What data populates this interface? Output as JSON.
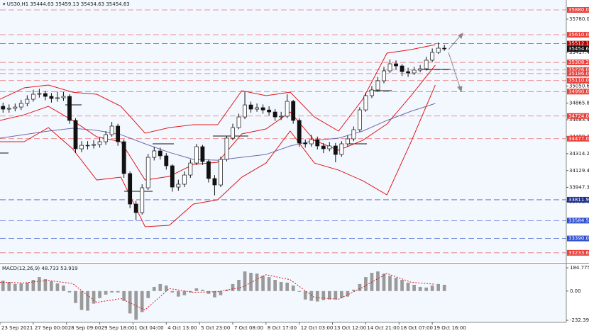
{
  "chart_data": {
    "type": "candlestick",
    "symbol": "US30,H1",
    "ohlc": [
      35444.63,
      35459.13,
      35434.63,
      35454.63
    ],
    "xlim": [
      0,
      562
    ],
    "ylim": [
      33132,
      35988
    ],
    "xticks": [
      {
        "value": 0,
        "label": "23 Sep 2021"
      },
      {
        "value": 33,
        "label": "27 Sep 00:00"
      },
      {
        "value": 66,
        "label": "28 Sep 09:00"
      },
      {
        "value": 99,
        "label": "29 Sep 18:00"
      },
      {
        "value": 132,
        "label": "1 Oct 04:00"
      },
      {
        "value": 165,
        "label": "4 Oct 13:00"
      },
      {
        "value": 198,
        "label": "5 Oct 23:00"
      },
      {
        "value": 231,
        "label": "7 Oct 08:00"
      },
      {
        "value": 264,
        "label": "8 Oct 17:00"
      },
      {
        "value": 297,
        "label": "12 Oct 03:00"
      },
      {
        "value": 330,
        "label": "13 Oct 12:00"
      },
      {
        "value": 363,
        "label": "14 Oct 21:00"
      },
      {
        "value": 396,
        "label": "18 Oct 07:00"
      },
      {
        "value": 429,
        "label": "19 Oct 16:00"
      }
    ],
    "yticks": [
      {
        "value": 35780,
        "label": "35780.00"
      },
      {
        "value": 35417.4,
        "label": "35417.40"
      },
      {
        "value": 35050.6,
        "label": "35050.60"
      },
      {
        "value": 34865.8,
        "label": "34865.80"
      },
      {
        "value": 34683.4,
        "label": "34683.40"
      },
      {
        "value": 34499.3,
        "label": "34499.30"
      },
      {
        "value": 34314.2,
        "label": "34314.20"
      },
      {
        "value": 34129.4,
        "label": "34129.40"
      },
      {
        "value": 33947.3,
        "label": "33947.30"
      },
      {
        "value": 33792.6,
        "label": "33792.60"
      }
    ],
    "x": [
      3,
      9,
      15,
      21,
      27,
      33,
      39,
      45,
      51,
      57,
      63,
      69,
      75,
      81,
      87,
      93,
      99,
      105,
      111,
      117,
      123,
      129,
      135,
      141,
      147,
      153,
      159,
      165,
      171,
      177,
      183,
      189,
      195,
      201,
      207,
      213,
      219,
      225,
      231,
      237,
      243,
      249,
      255,
      261,
      267,
      273,
      279,
      285,
      291,
      297,
      303,
      309,
      315,
      321,
      327,
      333,
      339,
      345,
      351,
      357,
      363,
      369,
      375,
      381,
      387,
      393,
      399,
      405,
      411,
      417,
      423,
      429,
      435,
      441
    ],
    "open": [
      34830,
      34799,
      34807,
      34822,
      34861,
      34907,
      34961,
      34969,
      34938,
      34915,
      34923,
      34938,
      34676,
      34367,
      34405,
      34405,
      34413,
      34444,
      34521,
      34614,
      34444,
      34097,
      33765,
      33672,
      33942,
      34274,
      34344,
      34290,
      34182,
      33950,
      33981,
      34081,
      34212,
      34390,
      34228,
      34043,
      33973,
      34251,
      34483,
      34598,
      34714,
      34845,
      34799,
      34815,
      34790,
      34768,
      34714,
      34722,
      34884,
      34676,
      34429,
      34421,
      34467,
      34398,
      34367,
      34398,
      34305,
      34421,
      34475,
      34575,
      34791,
      34946,
      35008,
      35108,
      35216,
      35293,
      35270,
      35208,
      35193,
      35224,
      35239,
      35332,
      35417,
      35463
    ],
    "high": [
      34870,
      34850,
      34860,
      34900,
      34950,
      35010,
      35020,
      35000,
      34975,
      34990,
      34985,
      34960,
      34700,
      34450,
      34450,
      34460,
      34490,
      34560,
      34660,
      34640,
      34470,
      34120,
      33800,
      33980,
      34310,
      34390,
      34380,
      34320,
      34200,
      34030,
      34120,
      34250,
      34420,
      34410,
      34250,
      34080,
      34280,
      34510,
      34640,
      34750,
      34990,
      34880,
      34860,
      34850,
      34830,
      34800,
      34770,
      34960,
      34900,
      34700,
      34470,
      34520,
      34500,
      34430,
      34440,
      34430,
      34450,
      34510,
      34610,
      34820,
      34980,
      35050,
      35150,
      35260,
      35340,
      35330,
      35290,
      35250,
      35260,
      35280,
      35370,
      35460,
      35525,
      35500
    ],
    "low": [
      34760,
      34760,
      34775,
      34790,
      34830,
      34880,
      34925,
      34895,
      34870,
      34880,
      34890,
      34640,
      34320,
      34330,
      34360,
      34370,
      34380,
      34410,
      34500,
      34400,
      34050,
      33720,
      33590,
      33650,
      33920,
      34240,
      34250,
      34140,
      33900,
      33910,
      33950,
      34050,
      34190,
      34190,
      34000,
      33860,
      33950,
      34230,
      34460,
      34580,
      34690,
      34760,
      34770,
      34750,
      34730,
      34670,
      34680,
      34700,
      34640,
      34390,
      34380,
      34390,
      34360,
      34320,
      34340,
      34220,
      34280,
      34390,
      34450,
      34550,
      34770,
      34920,
      34990,
      35080,
      35190,
      35230,
      35160,
      35150,
      35170,
      35200,
      35220,
      35310,
      35400,
      35434
    ],
    "close": [
      34799,
      34807,
      34822,
      34861,
      34907,
      34961,
      34969,
      34938,
      34915,
      34923,
      34938,
      34676,
      34367,
      34405,
      34405,
      34413,
      34444,
      34521,
      34614,
      34444,
      34097,
      33765,
      33672,
      33942,
      34274,
      34344,
      34290,
      34182,
      33950,
      33981,
      34081,
      34212,
      34390,
      34228,
      34043,
      33973,
      34251,
      34483,
      34598,
      34714,
      34845,
      34799,
      34815,
      34790,
      34768,
      34714,
      34722,
      34884,
      34676,
      34429,
      34421,
      34467,
      34398,
      34367,
      34398,
      34305,
      34421,
      34475,
      34575,
      34791,
      34946,
      35008,
      35108,
      35216,
      35293,
      35270,
      35208,
      35193,
      35224,
      35239,
      35332,
      35417,
      35463,
      35454.63
    ],
    "bands": {
      "x": [
        0,
        24,
        48,
        72,
        96,
        120,
        144,
        168,
        192,
        216,
        240,
        264,
        288,
        312,
        336,
        360,
        384,
        408,
        432
      ],
      "upper": [
        34907,
        35031,
        35062,
        34984,
        34961,
        34830,
        34537,
        34598,
        34629,
        34629,
        35000,
        34946,
        34984,
        34714,
        34560,
        34907,
        35409,
        35448,
        35502
      ],
      "middle": [
        34676,
        34737,
        34830,
        34676,
        34498,
        34444,
        34027,
        34066,
        34197,
        34220,
        34529,
        34583,
        34768,
        34459,
        34351,
        34459,
        34637,
        34946,
        35278
      ],
      "lower": [
        34444,
        34444,
        34598,
        34367,
        34027,
        34058,
        33518,
        33533,
        33765,
        33811,
        34058,
        34212,
        34560,
        34212,
        34135,
        34019,
        33865,
        34444,
        35062
      ],
      "ma": [
        34483,
        34521,
        34560,
        34591,
        34568,
        34521,
        34421,
        34328,
        34251,
        34243,
        34274,
        34305,
        34398,
        34459,
        34483,
        34560,
        34676,
        34776,
        34861
      ],
      "band_color": "#e01818",
      "ma_color": "#6b6baa"
    },
    "levels": [
      {
        "price": 35880,
        "label": "35880.00",
        "color": "#e8413c"
      },
      {
        "price": 35610,
        "label": "35610.00",
        "color": "#e8413c"
      },
      {
        "price": 35512.12,
        "color": "#b30000"
      },
      {
        "price": 35454.63,
        "color": "#111111"
      },
      {
        "price": 35308.23,
        "color": "#e8413c"
      },
      {
        "price": 35226,
        "label": "35226.00",
        "color": "#e8413c"
      },
      {
        "price": 35186,
        "label": "35186.00",
        "color": "#e8413c"
      },
      {
        "price": 35110,
        "label": "35110.00",
        "color": "#e8413c"
      },
      {
        "price": 34990,
        "label": "34990.00",
        "color": "#e8413c"
      },
      {
        "price": 34724,
        "label": "34724.00",
        "color": "#e8413c"
      },
      {
        "price": 34477,
        "label": "34477.00",
        "color": "#e8413c"
      },
      {
        "price": 33811.92,
        "color": "#1c2f8c"
      },
      {
        "price": 33584.59,
        "color": "#2f4fd0"
      },
      {
        "price": 33390,
        "label": "33390.00",
        "color": "#2f4fd0"
      },
      {
        "price": 33233.63,
        "color": "#e8413c"
      }
    ],
    "macd": {
      "title": "MACD(12,26,9)",
      "value": 48.733,
      "signal_value": 53.919,
      "ylim": [
        -249,
        213
      ],
      "yticks": [
        184.775,
        {
          "value": 0,
          "label": "0.00"
        },
        -232.39
      ],
      "histogram": [
        83,
        72,
        56,
        61,
        67,
        89,
        111,
        95,
        78,
        61,
        44,
        -11,
        -95,
        -150,
        -156,
        -100,
        -56,
        -28,
        -11,
        -11,
        -78,
        -178,
        -228,
        -167,
        -56,
        33,
        56,
        44,
        -11,
        -44,
        -33,
        -11,
        22,
        11,
        -22,
        -50,
        -33,
        11,
        56,
        89,
        156,
        145,
        139,
        122,
        111,
        89,
        72,
        67,
        44,
        -6,
        -67,
        -78,
        -83,
        -72,
        -67,
        -67,
        -56,
        -44,
        11,
        56,
        111,
        145,
        156,
        139,
        122,
        106,
        89,
        67,
        50,
        33,
        28,
        44,
        56,
        50
      ],
      "signal": [
        70,
        65,
        85,
        60,
        -90,
        -60,
        -150,
        20,
        -10,
        -5,
        30,
        130,
        90,
        -50,
        -65,
        30,
        140,
        70,
        54
      ],
      "hist_color": "#9a9a9a",
      "signal_color": "#e01818"
    }
  }
}
